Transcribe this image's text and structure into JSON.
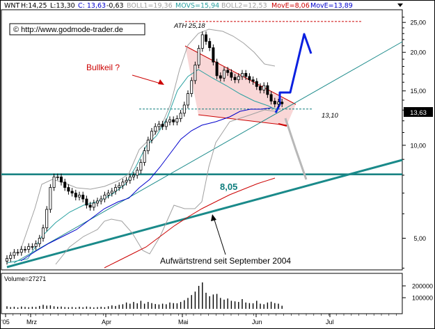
{
  "header": {
    "symbol": "WNT",
    "high": "H:14,25",
    "low": "L:13,30",
    "close": "C: 13,63",
    "change": "-0,63",
    "boll1": "BOLL1=19,36",
    "movs": "MOVS=15,94",
    "boll2": "BOLL2=12,53",
    "move1": "MovE=8,06",
    "move2": "MovE=13,89"
  },
  "colors": {
    "price": "#000000",
    "boll": "#a0a0a0",
    "movs": "#28a0a0",
    "move1": "#cc0000",
    "move2": "#0000cc",
    "support": "#0e7d7d",
    "trend": "#1a8a8a",
    "wedge_fill": "#f7caca",
    "wedge_line": "#cc0000",
    "projection": "#0a20e0",
    "projection_down": "#b8b8b8"
  },
  "watermark": "© http://www.godmode-trader.de",
  "annotations": {
    "bullkeil": "Bullkeil ?",
    "ath": "ATH 25,18",
    "level_1310": "13,10",
    "level_805": "8,05",
    "trend_text": "Aufwärtstrend seit September 2004"
  },
  "last_price_badge": "13,63",
  "volume_label": "Volume=27271",
  "chart_data": {
    "type": "line",
    "title": "",
    "yscale": "log",
    "y_ticks": [
      "25,00",
      "20,00",
      "15,00",
      "10,00",
      "5,00"
    ],
    "y_tick_values": [
      25,
      20,
      15,
      10,
      5
    ],
    "x_ticks": [
      "'05",
      "Mrz",
      "Apr",
      "Mai",
      "Jun",
      "Jul"
    ],
    "volume_ticks": [
      "200000",
      "100000"
    ],
    "levels": {
      "ath": 25.18,
      "support": 13.1,
      "horizontal": 8.05
    },
    "series": [
      {
        "name": "",
        "kind": "price",
        "values": [
          4.3,
          4.4,
          4.5,
          4.5,
          4.6,
          4.6,
          4.7,
          4.7,
          4.8,
          5.0,
          5.4,
          6.2,
          7.3,
          7.9,
          7.9,
          7.6,
          7.3,
          7.1,
          7.0,
          6.8,
          6.9,
          6.7,
          6.4,
          6.3,
          6.5,
          6.6,
          6.7,
          6.9,
          7.0,
          7.1,
          7.3,
          7.4,
          7.6,
          7.7,
          7.9,
          8.0,
          8.3,
          8.8,
          9.6,
          10.4,
          11.1,
          11.5,
          11.7,
          11.5,
          11.9,
          12.1,
          11.9,
          12.2,
          12.7,
          13.5,
          14.7,
          16.2,
          18.2,
          20.6,
          22.8,
          21.7,
          20.7,
          18.6,
          16.8,
          16.5,
          17.5,
          17.2,
          16.6,
          16.3,
          16.7,
          17.1,
          16.7,
          16.3,
          16.1,
          15.5,
          15.1,
          15.6,
          14.6,
          13.9,
          13.6,
          13.8,
          13.63
        ]
      }
    ],
    "volume": [
      22,
      15,
      18,
      12,
      20,
      16,
      14,
      18,
      16,
      25,
      35,
      28,
      30,
      22,
      18,
      20,
      15,
      14,
      16,
      12,
      18,
      14,
      20,
      16,
      12,
      15,
      18,
      14,
      22,
      30,
      25,
      35,
      40,
      55,
      45,
      60,
      48,
      70,
      45,
      60,
      50,
      42,
      38,
      45,
      40,
      55,
      50,
      48,
      60,
      75,
      95,
      120,
      150,
      200,
      230,
      140,
      110,
      125,
      130,
      95,
      80,
      90,
      70,
      65,
      60,
      85,
      55,
      50,
      48,
      70,
      45,
      40,
      55,
      62,
      50,
      45,
      27
    ]
  }
}
